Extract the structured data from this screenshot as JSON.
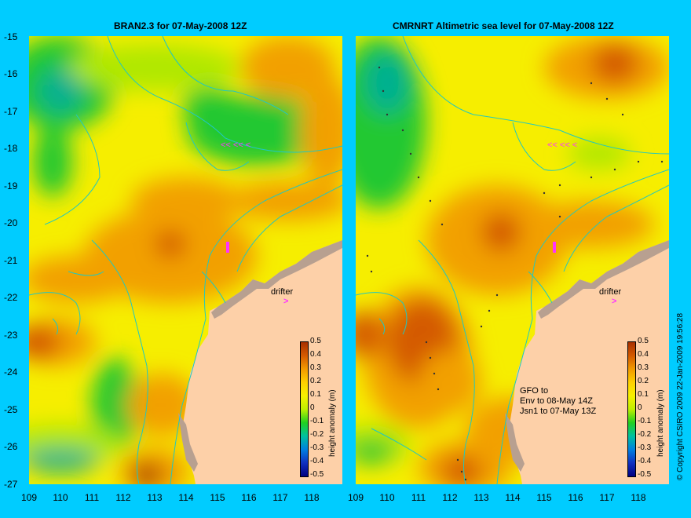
{
  "left_panel": {
    "title": "BRAN2.3 for 07-May-2008 12Z"
  },
  "right_panel": {
    "title": "CMRNRT Altimetric sea level  for 07-May-2008 12Z"
  },
  "y_ticks": [
    "-15",
    "-16",
    "-17",
    "-18",
    "-19",
    "-20",
    "-21",
    "-22",
    "-23",
    "-24",
    "-25",
    "-26",
    "-27"
  ],
  "x_ticks": [
    "109",
    "110",
    "111",
    "112",
    "113",
    "114",
    "115",
    "116",
    "117",
    "118"
  ],
  "colorbar": {
    "label": "height anomaly (m)",
    "ticks": [
      "0.5",
      "0.4",
      "0.3",
      "0.2",
      "0.1",
      "0",
      "-0.1",
      "-0.2",
      "-0.3",
      "-0.4",
      "-0.5"
    ],
    "colors": [
      "#a83000",
      "#d45a00",
      "#f29a00",
      "#ffd000",
      "#f6f000",
      "#bfef00",
      "#20d020",
      "#00c0a0",
      "#0080e0",
      "#1030c0",
      "#000080"
    ]
  },
  "drifter_label": "drifter",
  "drifter_marker": ">",
  "altimetry_note": [
    "GFO to",
    "Env to 08-May 14Z",
    "Jsn1 to 07-May 13Z"
  ],
  "copyright": "© Copyright CSIRO 2009   22-Jan-2009 19:56:28",
  "colors": {
    "background": "#00ccff",
    "land": "#fdd0a8",
    "drifter": "#ff33ff"
  }
}
